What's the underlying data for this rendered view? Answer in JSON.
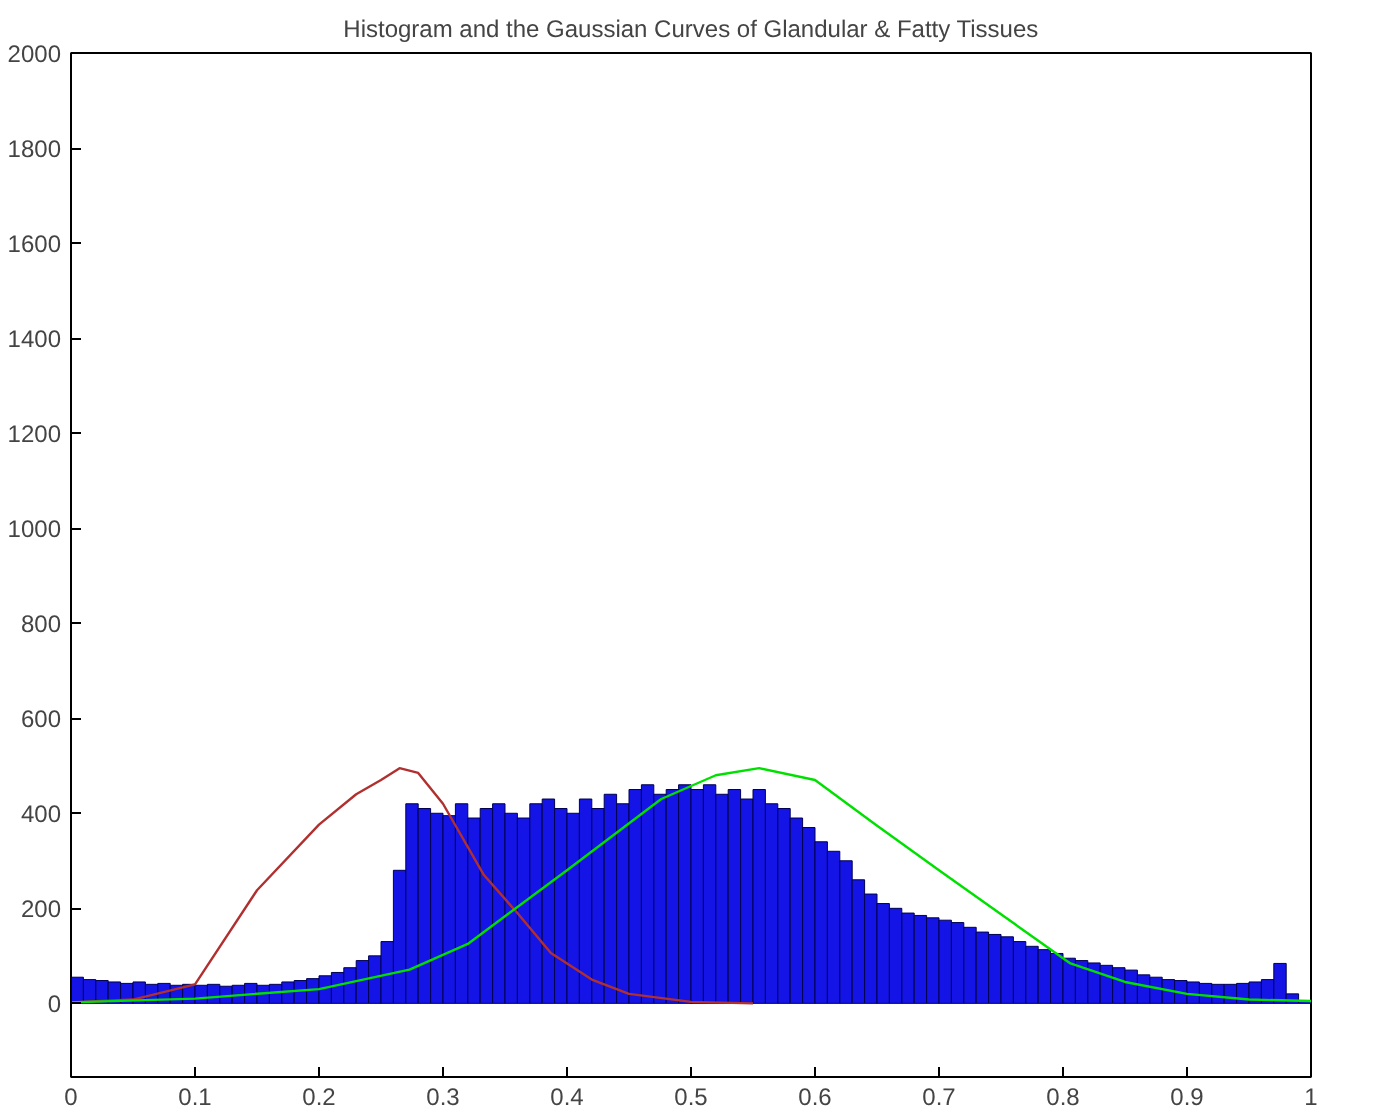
{
  "chart_data": {
    "type": "histogram",
    "title": "Histogram and the Gaussian Curves of Glandular & Fatty Tissues",
    "bins": [
      0,
      0.01,
      0.02,
      0.03,
      0.04,
      0.05,
      0.06,
      0.07,
      0.08,
      0.09,
      0.1,
      0.11,
      0.12,
      0.13,
      0.14,
      0.15,
      0.16,
      0.17,
      0.18,
      0.19,
      0.2,
      0.21,
      0.22,
      0.23,
      0.24,
      0.25,
      0.26,
      0.27,
      0.28,
      0.29,
      0.3,
      0.31,
      0.32,
      0.33,
      0.34,
      0.35,
      0.36,
      0.37,
      0.38,
      0.39,
      0.4,
      0.41,
      0.42,
      0.43,
      0.44,
      0.45,
      0.46,
      0.47,
      0.48,
      0.49,
      0.5,
      0.51,
      0.52,
      0.53,
      0.54,
      0.55,
      0.56,
      0.57,
      0.58,
      0.59,
      0.6,
      0.61,
      0.62,
      0.63,
      0.64,
      0.65,
      0.66,
      0.67,
      0.68,
      0.69,
      0.7,
      0.71,
      0.72,
      0.73,
      0.74,
      0.75,
      0.76,
      0.77,
      0.78,
      0.79,
      0.8,
      0.81,
      0.82,
      0.83,
      0.84,
      0.85,
      0.86,
      0.87,
      0.88,
      0.89,
      0.9,
      0.91,
      0.92,
      0.93,
      0.94,
      0.95,
      0.96,
      0.97,
      0.98,
      0.99,
      1
    ],
    "values": [
      55,
      50,
      48,
      45,
      42,
      45,
      40,
      42,
      38,
      40,
      38,
      40,
      36,
      38,
      42,
      38,
      40,
      45,
      48,
      52,
      58,
      65,
      75,
      90,
      100,
      130,
      280,
      420,
      410,
      400,
      395,
      420,
      390,
      410,
      420,
      400,
      390,
      420,
      430,
      410,
      400,
      430,
      410,
      440,
      420,
      450,
      460,
      440,
      450,
      460,
      450,
      460,
      440,
      450,
      430,
      450,
      420,
      410,
      390,
      370,
      340,
      320,
      300,
      260,
      230,
      210,
      200,
      190,
      185,
      180,
      175,
      170,
      160,
      150,
      145,
      140,
      130,
      120,
      113,
      105,
      95,
      90,
      85,
      80,
      75,
      70,
      60,
      55,
      50,
      48,
      45,
      42,
      40,
      40,
      42,
      45,
      50,
      84,
      20,
      5
    ],
    "color": "#1414e6",
    "series": [
      {
        "type": "line",
        "color": "#b03030",
        "x": [
          0,
          0.05,
          0.1,
          0.15,
          0.2,
          0.23,
          0.25,
          0.265,
          0.28,
          0.3,
          0.333,
          0.36,
          0.387,
          0.42,
          0.45,
          0.5,
          0.55
        ],
        "values": [
          2,
          8,
          40,
          238,
          376,
          440,
          470,
          495,
          485,
          420,
          270,
          190,
          106,
          50,
          20,
          3,
          0
        ]
      },
      {
        "type": "line",
        "color": "#00e000",
        "x": [
          0,
          0.1,
          0.2,
          0.273,
          0.32,
          0.4,
          0.476,
          0.52,
          0.555,
          0.6,
          0.649,
          0.7,
          0.754,
          0.806,
          0.85,
          0.9,
          0.95,
          1
        ],
        "values": [
          2,
          10,
          30,
          71,
          125,
          280,
          430,
          480,
          495,
          470,
          376,
          280,
          180,
          84,
          45,
          20,
          8,
          5
        ]
      }
    ],
    "xlim": [
      0,
      1
    ],
    "ylim": [
      -155,
      2000
    ],
    "xticks": [
      0,
      0.1,
      0.2,
      0.3,
      0.4,
      0.5,
      0.6,
      0.7,
      0.8,
      0.9,
      1
    ],
    "yticks": [
      0,
      200,
      400,
      600,
      800,
      1000,
      1200,
      1400,
      1600,
      1800,
      2000
    ],
    "grid": false
  }
}
